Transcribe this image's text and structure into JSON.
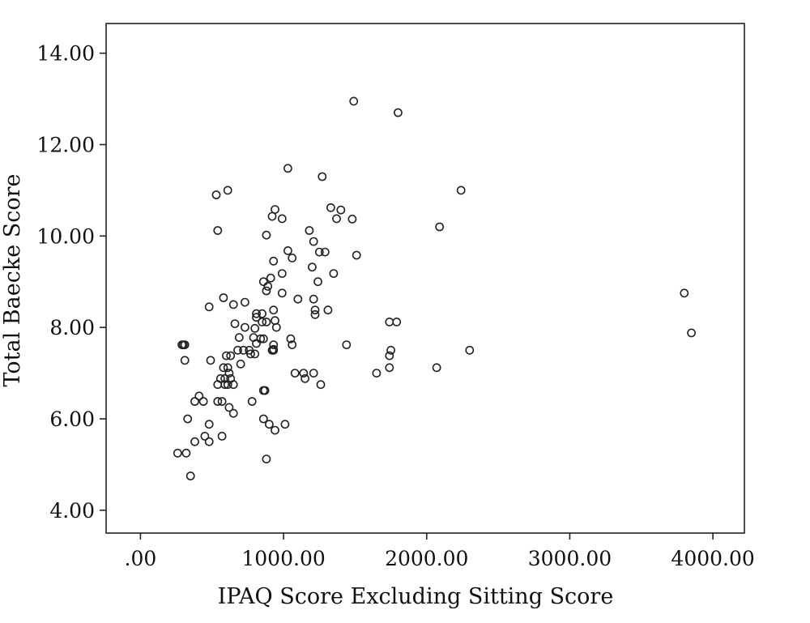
{
  "chart_data": {
    "type": "scatter",
    "title": "",
    "xlabel": "IPAQ Score Excluding Sitting Score",
    "ylabel": "Total Baecke Score",
    "xlim": [
      -240,
      4220
    ],
    "ylim": [
      3.5,
      14.65
    ],
    "x_ticks": [
      0,
      1000,
      2000,
      3000,
      4000
    ],
    "x_tick_labels": [
      ".00",
      "1000.00",
      "2000.00",
      "3000.00",
      "4000.00"
    ],
    "y_ticks": [
      4,
      6,
      8,
      10,
      12,
      14
    ],
    "y_tick_labels": [
      "4.00",
      "6.00",
      "8.00",
      "10.00",
      "12.00",
      "14.00"
    ],
    "grid": false,
    "legend": "none",
    "marker": "open-circle",
    "points": [
      [
        1490,
        12.95
      ],
      [
        1800,
        12.7
      ],
      [
        1030,
        11.48
      ],
      [
        1270,
        11.3
      ],
      [
        2240,
        11.0
      ],
      [
        610,
        11.0
      ],
      [
        530,
        10.9
      ],
      [
        940,
        10.58
      ],
      [
        1330,
        10.62
      ],
      [
        1400,
        10.57
      ],
      [
        920,
        10.43
      ],
      [
        990,
        10.38
      ],
      [
        1370,
        10.38
      ],
      [
        1480,
        10.37
      ],
      [
        2090,
        10.2
      ],
      [
        1180,
        10.12
      ],
      [
        540,
        10.12
      ],
      [
        880,
        10.02
      ],
      [
        1210,
        9.88
      ],
      [
        1030,
        9.68
      ],
      [
        1250,
        9.65
      ],
      [
        1290,
        9.65
      ],
      [
        1510,
        9.58
      ],
      [
        1060,
        9.52
      ],
      [
        930,
        9.45
      ],
      [
        1200,
        9.32
      ],
      [
        1350,
        9.18
      ],
      [
        990,
        9.18
      ],
      [
        910,
        9.08
      ],
      [
        860,
        9.0
      ],
      [
        1240,
        9.0
      ],
      [
        890,
        8.9
      ],
      [
        880,
        8.8
      ],
      [
        990,
        8.75
      ],
      [
        580,
        8.65
      ],
      [
        1100,
        8.62
      ],
      [
        1210,
        8.62
      ],
      [
        730,
        8.55
      ],
      [
        650,
        8.5
      ],
      [
        480,
        8.45
      ],
      [
        1220,
        8.38
      ],
      [
        1310,
        8.38
      ],
      [
        930,
        8.38
      ],
      [
        810,
        8.3
      ],
      [
        850,
        8.3
      ],
      [
        1220,
        8.28
      ],
      [
        810,
        8.22
      ],
      [
        940,
        8.15
      ],
      [
        1740,
        8.12
      ],
      [
        1790,
        8.12
      ],
      [
        880,
        8.12
      ],
      [
        850,
        8.12
      ],
      [
        660,
        8.08
      ],
      [
        730,
        8.0
      ],
      [
        950,
        8.0
      ],
      [
        800,
        7.98
      ],
      [
        790,
        7.78
      ],
      [
        1050,
        7.75
      ],
      [
        690,
        7.78
      ],
      [
        840,
        7.75
      ],
      [
        860,
        7.75
      ],
      [
        810,
        7.65
      ],
      [
        930,
        7.62
      ],
      [
        1060,
        7.62
      ],
      [
        1440,
        7.62
      ],
      [
        290,
        7.62
      ],
      [
        300,
        7.62
      ],
      [
        310,
        7.62
      ],
      [
        930,
        7.5
      ],
      [
        920,
        7.5
      ],
      [
        930,
        7.52
      ],
      [
        720,
        7.5
      ],
      [
        680,
        7.5
      ],
      [
        760,
        7.5
      ],
      [
        800,
        7.42
      ],
      [
        2300,
        7.5
      ],
      [
        1750,
        7.5
      ],
      [
        1740,
        7.38
      ],
      [
        600,
        7.38
      ],
      [
        630,
        7.38
      ],
      [
        770,
        7.42
      ],
      [
        310,
        7.28
      ],
      [
        490,
        7.28
      ],
      [
        700,
        7.2
      ],
      [
        580,
        7.12
      ],
      [
        610,
        7.12
      ],
      [
        2070,
        7.12
      ],
      [
        1740,
        7.12
      ],
      [
        1080,
        7.0
      ],
      [
        1140,
        7.0
      ],
      [
        1210,
        7.0
      ],
      [
        1650,
        7.0
      ],
      [
        620,
        7.0
      ],
      [
        1150,
        6.88
      ],
      [
        560,
        6.88
      ],
      [
        590,
        6.88
      ],
      [
        630,
        6.88
      ],
      [
        540,
        6.75
      ],
      [
        590,
        6.75
      ],
      [
        610,
        6.75
      ],
      [
        650,
        6.75
      ],
      [
        1260,
        6.75
      ],
      [
        860,
        6.62
      ],
      [
        870,
        6.62
      ],
      [
        540,
        6.38
      ],
      [
        570,
        6.38
      ],
      [
        780,
        6.38
      ],
      [
        380,
        6.38
      ],
      [
        440,
        6.38
      ],
      [
        410,
        6.5
      ],
      [
        620,
        6.25
      ],
      [
        650,
        6.12
      ],
      [
        330,
        6.0
      ],
      [
        860,
        6.0
      ],
      [
        900,
        5.88
      ],
      [
        480,
        5.88
      ],
      [
        1010,
        5.88
      ],
      [
        940,
        5.75
      ],
      [
        570,
        5.62
      ],
      [
        450,
        5.62
      ],
      [
        380,
        5.5
      ],
      [
        480,
        5.5
      ],
      [
        260,
        5.25
      ],
      [
        320,
        5.25
      ],
      [
        880,
        5.12
      ],
      [
        350,
        4.75
      ],
      [
        3800,
        8.75
      ],
      [
        3850,
        7.88
      ]
    ]
  }
}
